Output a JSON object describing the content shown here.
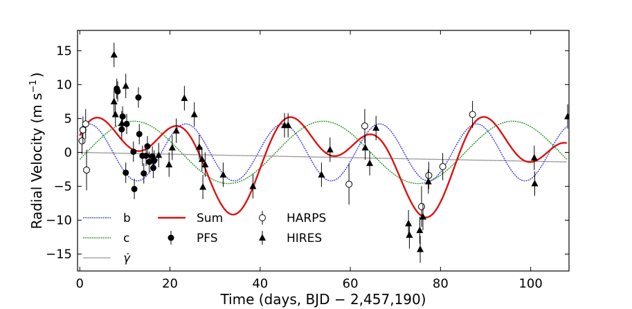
{
  "chart_data": {
    "type": "scatter",
    "title": "",
    "xlabel": "Time (days, BJD − 2,457,190)",
    "ylabel_main": "Radial Velocity (m s",
    "ylabel_sup": "−1",
    "ylabel_end": ")",
    "xlim": [
      -0.5,
      108.5
    ],
    "ylim": [
      -17.5,
      18
    ],
    "xticks": [
      0,
      20,
      40,
      60,
      80,
      100
    ],
    "xtick_labels": [
      "0",
      "20",
      "40",
      "60",
      "80",
      "100"
    ],
    "yticks": [
      15,
      10,
      5,
      0,
      -5,
      -10,
      -15
    ],
    "ytick_labels": [
      "15",
      "10",
      "5",
      "0",
      "−5",
      "−10",
      "−15"
    ],
    "colors": {
      "b": "#4444dd",
      "c": "#2c9a2c",
      "sum": "#dd1111",
      "gamma": "#999999",
      "points": "#000000"
    },
    "legend": {
      "b": "b",
      "c": "c",
      "gamma": "γ̇",
      "sum": "Sum",
      "pfs": "PFS",
      "harps": "HARPS",
      "hires": "HIRES"
    },
    "models": {
      "b": {
        "amplitude": 4.2,
        "period": 21.5,
        "phase_peak_day": 2.0
      },
      "c": {
        "amplitude": 4.6,
        "period": 42.0,
        "phase_peak_day": 12.0
      },
      "gamma": {
        "intercept": 0.0,
        "slope": -0.013
      }
    },
    "series": [
      {
        "name": "PFS",
        "marker": "filled-circle",
        "points": [
          [
            8.2,
            9.4,
            1.5
          ],
          [
            8.4,
            9.0,
            1.5
          ],
          [
            9.3,
            3.4,
            1.5
          ],
          [
            9.5,
            5.3,
            1.5
          ],
          [
            10.2,
            -3.0,
            1.5
          ],
          [
            10.4,
            4.2,
            1.5
          ],
          [
            11.9,
            0.1,
            1.5
          ],
          [
            12.1,
            -5.4,
            1.5
          ],
          [
            13.0,
            8.1,
            1.5
          ],
          [
            13.2,
            2.7,
            1.5
          ],
          [
            13.9,
            -0.5,
            1.5
          ],
          [
            14.2,
            -3.1,
            1.5
          ],
          [
            14.7,
            -0.5,
            1.5
          ],
          [
            15.0,
            0.9,
            1.5
          ],
          [
            15.4,
            -1.4,
            1.5
          ],
          [
            16.1,
            -0.6,
            1.5
          ],
          [
            16.3,
            -2.3,
            1.5
          ],
          [
            16.5,
            -1.2,
            1.5
          ]
        ]
      },
      {
        "name": "HARPS",
        "marker": "open-circle",
        "points": [
          [
            0.5,
            1.7,
            2.0
          ],
          [
            0.7,
            3.3,
            2.0
          ],
          [
            1.3,
            4.2,
            2.2
          ],
          [
            1.5,
            -2.6,
            3.0
          ],
          [
            59.7,
            -4.7,
            3.0
          ],
          [
            63.2,
            3.9,
            2.5
          ],
          [
            75.8,
            -8.0,
            3.0
          ],
          [
            77.4,
            -3.4,
            2.0
          ],
          [
            80.5,
            -2.1,
            2.0
          ],
          [
            87.1,
            5.6,
            2.0
          ]
        ]
      },
      {
        "name": "HIRES",
        "marker": "triangle",
        "points": [
          [
            7.6,
            14.4,
            1.8
          ],
          [
            7.6,
            7.5,
            1.8
          ],
          [
            7.9,
            5.6,
            1.8
          ],
          [
            9.3,
            4.3,
            1.8
          ],
          [
            10.2,
            9.8,
            1.8
          ],
          [
            17.5,
            -0.4,
            1.8
          ],
          [
            19.8,
            -1.8,
            1.8
          ],
          [
            20.5,
            0.7,
            1.8
          ],
          [
            21.4,
            3.2,
            1.8
          ],
          [
            23.2,
            8.0,
            1.8
          ],
          [
            25.4,
            5.6,
            1.8
          ],
          [
            26.5,
            0.8,
            1.8
          ],
          [
            27.1,
            -1.0,
            1.8
          ],
          [
            27.3,
            -5.1,
            1.8
          ],
          [
            27.8,
            -1.8,
            1.8
          ],
          [
            31.8,
            -3.3,
            1.8
          ],
          [
            38.4,
            -5.0,
            1.8
          ],
          [
            45.4,
            4.0,
            1.8
          ],
          [
            46.2,
            4.0,
            1.8
          ],
          [
            53.6,
            -3.3,
            1.8
          ],
          [
            55.5,
            0.4,
            1.8
          ],
          [
            63.3,
            0.7,
            1.8
          ],
          [
            64.3,
            -1.6,
            1.8
          ],
          [
            65.7,
            3.6,
            1.8
          ],
          [
            72.9,
            -10.5,
            2.0
          ],
          [
            73.1,
            -12.2,
            2.0
          ],
          [
            75.4,
            -11.5,
            2.0
          ],
          [
            75.5,
            -14.3,
            2.0
          ],
          [
            76.1,
            -9.5,
            2.0
          ],
          [
            77.3,
            -4.3,
            1.8
          ],
          [
            100.8,
            -0.8,
            1.8
          ],
          [
            100.9,
            -4.6,
            1.8
          ],
          [
            108.2,
            5.3,
            1.8
          ]
        ]
      }
    ]
  }
}
